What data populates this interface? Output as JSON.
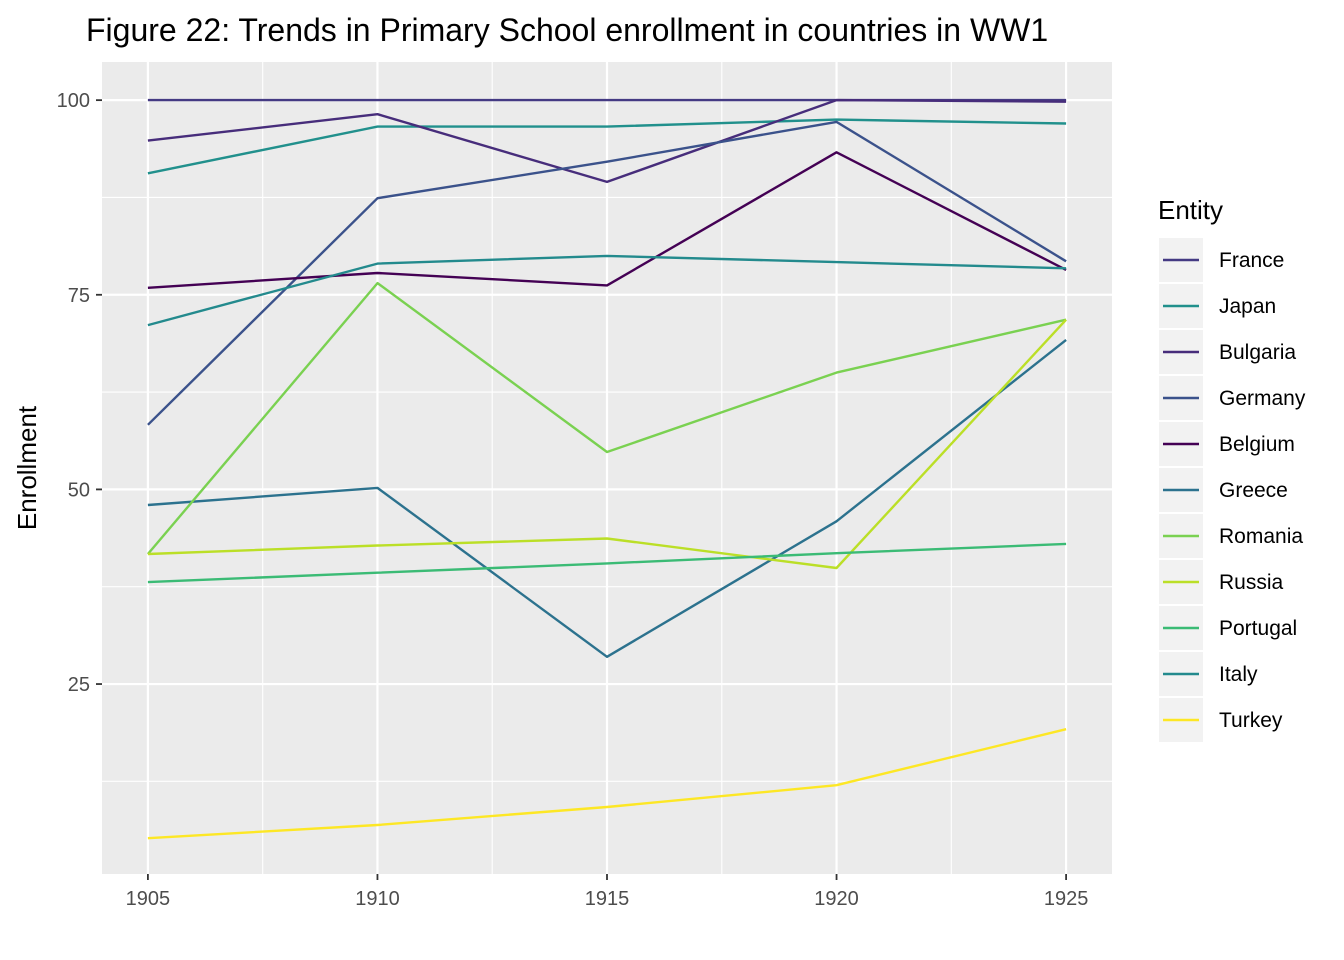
{
  "chart_data": {
    "type": "line",
    "title": "Figure 22: Trends in Primary School enrollment in countries in WW1",
    "xlabel": "",
    "ylabel": "Enrollment",
    "x": [
      1905,
      1910,
      1915,
      1920,
      1925
    ],
    "xlim": [
      1904,
      1926
    ],
    "ylim": [
      0.6,
      104.9
    ],
    "x_ticks": [
      "1905",
      "1910",
      "1915",
      "1920",
      "1925"
    ],
    "y_ticks": [
      "25",
      "50",
      "75",
      "100"
    ],
    "grid": true,
    "legend": {
      "title": "Entity",
      "position": "right"
    },
    "series": [
      {
        "name": "France",
        "color": "#443A83",
        "values": [
          100.0,
          100.0,
          100.0,
          100.0,
          100.0
        ]
      },
      {
        "name": "Japan",
        "color": "#21908C",
        "values": [
          90.6,
          96.6,
          96.6,
          97.5,
          97.0
        ]
      },
      {
        "name": "Bulgaria",
        "color": "#472D7B",
        "values": [
          94.8,
          98.2,
          89.5,
          100.0,
          99.8
        ]
      },
      {
        "name": "Germany",
        "color": "#3B528B",
        "values": [
          58.3,
          87.4,
          92.1,
          97.2,
          79.3
        ]
      },
      {
        "name": "Belgium",
        "color": "#440154",
        "values": [
          75.9,
          77.8,
          76.2,
          93.3,
          78.2
        ]
      },
      {
        "name": "Greece",
        "color": "#2C728E",
        "values": [
          48.0,
          50.2,
          28.5,
          45.9,
          69.2
        ]
      },
      {
        "name": "Romania",
        "color": "#7AD151",
        "values": [
          41.7,
          76.5,
          54.8,
          65.0,
          71.8
        ]
      },
      {
        "name": "Russia",
        "color": "#BBDF27",
        "values": [
          41.7,
          42.8,
          43.7,
          39.9,
          71.8
        ]
      },
      {
        "name": "Portugal",
        "color": "#3BBB75",
        "values": [
          38.1,
          39.3,
          40.5,
          41.8,
          43.0
        ]
      },
      {
        "name": "Italy",
        "color": "#238A8D",
        "values": [
          71.1,
          79.0,
          80.0,
          79.2,
          78.4
        ]
      },
      {
        "name": "Turkey",
        "color": "#FDE725",
        "values": [
          5.2,
          6.9,
          9.2,
          12.0,
          19.2
        ]
      }
    ]
  }
}
